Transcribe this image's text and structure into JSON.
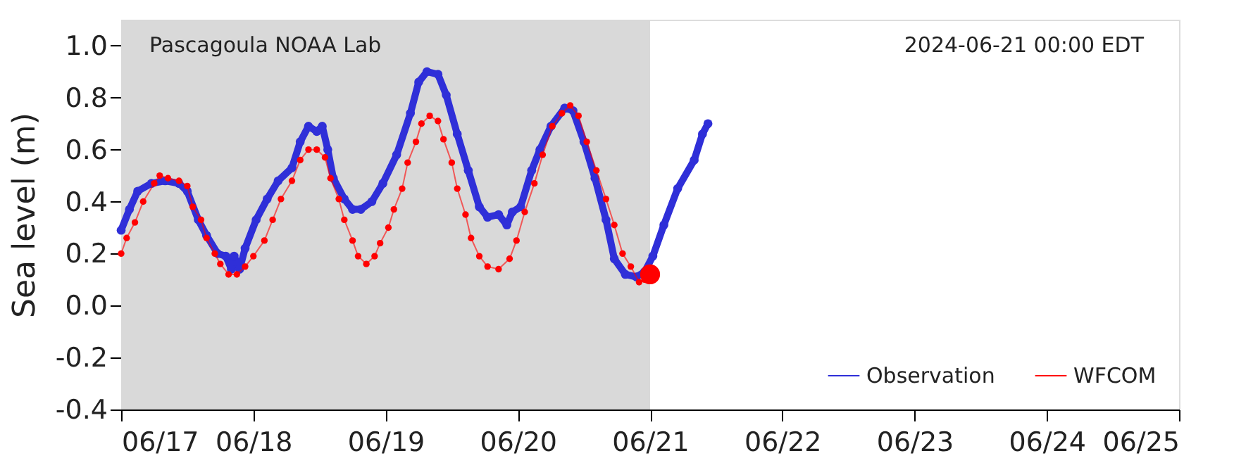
{
  "chart_data": {
    "type": "line",
    "ylabel": "Sea level (m)",
    "annotations": [
      "Pascagoula NOAA Lab",
      "2024-06-21 00:00 EDT"
    ],
    "xlim": [
      "2024-06-17T00:00",
      "2024-06-25T00:00"
    ],
    "xticks": [
      {
        "value": "2024-06-17T00:00",
        "label": "06/17"
      },
      {
        "value": "2024-06-18T00:00",
        "label": "06/18"
      },
      {
        "value": "2024-06-19T00:00",
        "label": "06/19"
      },
      {
        "value": "2024-06-20T00:00",
        "label": "06/20"
      },
      {
        "value": "2024-06-21T00:00",
        "label": "06/21"
      },
      {
        "value": "2024-06-22T00:00",
        "label": "06/22"
      },
      {
        "value": "2024-06-23T00:00",
        "label": "06/23"
      },
      {
        "value": "2024-06-24T00:00",
        "label": "06/24"
      },
      {
        "value": "2024-06-25T00:00",
        "label": "06/25"
      }
    ],
    "ylim": [
      -0.4,
      1.1
    ],
    "yticks": [
      {
        "value": -0.4,
        "label": "-0.4"
      },
      {
        "value": -0.2,
        "label": "-0.2"
      },
      {
        "value": 0,
        "label": "0.0"
      },
      {
        "value": 0.2,
        "label": "0.2"
      },
      {
        "value": 0.4,
        "label": "0.4"
      },
      {
        "value": 0.6,
        "label": "0.6"
      },
      {
        "value": 0.8,
        "label": "0.8"
      },
      {
        "value": 1.0,
        "label": "1.0"
      }
    ],
    "grid": false,
    "legend": "bottom right",
    "line_style": "solid",
    "bands": [
      {
        "axis": "x",
        "from": "2024-06-17T00:00",
        "to": "2024-06-21T00:00",
        "color": "#d9d9d9"
      }
    ],
    "series": [
      {
        "name": "Observation",
        "color": "#2f2fd8",
        "type": "line",
        "marker": "circle",
        "x": [
          "2024-06-17T00:00",
          "2024-06-17T01:30",
          "2024-06-17T03:00",
          "2024-06-17T05:30",
          "2024-06-17T08:00",
          "2024-06-17T10:30",
          "2024-06-17T12:00",
          "2024-06-17T14:00",
          "2024-06-17T15:30",
          "2024-06-17T17:30",
          "2024-06-17T19:00",
          "2024-06-17T20:00",
          "2024-06-17T20:30",
          "2024-06-17T21:30",
          "2024-06-17T22:30",
          "2024-06-18T00:30",
          "2024-06-18T02:30",
          "2024-06-18T04:30",
          "2024-06-18T07:00",
          "2024-06-18T08:30",
          "2024-06-18T10:00",
          "2024-06-18T11:30",
          "2024-06-18T12:30",
          "2024-06-18T13:30",
          "2024-06-18T14:30",
          "2024-06-18T16:30",
          "2024-06-18T18:00",
          "2024-06-18T19:30",
          "2024-06-18T21:30",
          "2024-06-18T23:30",
          "2024-06-19T02:00",
          "2024-06-19T04:30",
          "2024-06-19T06:00",
          "2024-06-19T07:30",
          "2024-06-19T09:30",
          "2024-06-19T11:00",
          "2024-06-19T13:00",
          "2024-06-19T15:00",
          "2024-06-19T17:00",
          "2024-06-19T18:30",
          "2024-06-19T20:30",
          "2024-06-19T22:00",
          "2024-06-19T23:00",
          "2024-06-20T00:30",
          "2024-06-20T02:30",
          "2024-06-20T04:00",
          "2024-06-20T06:00",
          "2024-06-20T08:30",
          "2024-06-20T10:00",
          "2024-06-20T12:00",
          "2024-06-20T14:00",
          "2024-06-20T16:00",
          "2024-06-20T17:30",
          "2024-06-20T19:30",
          "2024-06-20T21:30",
          "2024-06-20T23:00",
          "2024-06-21T00:30",
          "2024-06-21T02:30",
          "2024-06-21T05:00",
          "2024-06-21T08:00",
          "2024-06-21T09:30",
          "2024-06-21T10:30"
        ],
        "values": [
          0.29,
          0.37,
          0.44,
          0.47,
          0.48,
          0.47,
          0.44,
          0.33,
          0.27,
          0.2,
          0.19,
          0.14,
          0.19,
          0.14,
          0.22,
          0.33,
          0.41,
          0.48,
          0.53,
          0.63,
          0.69,
          0.67,
          0.69,
          0.6,
          0.49,
          0.41,
          0.37,
          0.37,
          0.4,
          0.47,
          0.58,
          0.74,
          0.86,
          0.9,
          0.89,
          0.81,
          0.66,
          0.52,
          0.38,
          0.34,
          0.35,
          0.31,
          0.36,
          0.38,
          0.52,
          0.6,
          0.69,
          0.76,
          0.75,
          0.63,
          0.49,
          0.33,
          0.18,
          0.12,
          0.11,
          0.13,
          0.19,
          0.31,
          0.45,
          0.56,
          0.66,
          0.7
        ]
      },
      {
        "name": "WFCOM",
        "color": "#ff0000",
        "type": "line",
        "marker": "circle",
        "x": [
          "2024-06-17T00:00",
          "2024-06-17T01:00",
          "2024-06-17T02:30",
          "2024-06-17T04:00",
          "2024-06-17T06:00",
          "2024-06-17T07:00",
          "2024-06-17T08:30",
          "2024-06-17T10:30",
          "2024-06-17T12:00",
          "2024-06-17T13:00",
          "2024-06-17T14:30",
          "2024-06-17T15:30",
          "2024-06-17T17:00",
          "2024-06-17T18:00",
          "2024-06-17T19:30",
          "2024-06-17T21:00",
          "2024-06-17T22:30",
          "2024-06-18T00:00",
          "2024-06-18T02:00",
          "2024-06-18T03:30",
          "2024-06-18T05:00",
          "2024-06-18T07:00",
          "2024-06-18T08:30",
          "2024-06-18T10:00",
          "2024-06-18T11:30",
          "2024-06-18T13:00",
          "2024-06-18T14:00",
          "2024-06-18T15:30",
          "2024-06-18T16:30",
          "2024-06-18T18:00",
          "2024-06-18T19:00",
          "2024-06-18T20:30",
          "2024-06-18T22:00",
          "2024-06-18T23:00",
          "2024-06-19T00:30",
          "2024-06-19T01:30",
          "2024-06-19T03:00",
          "2024-06-19T04:00",
          "2024-06-19T05:30",
          "2024-06-19T06:30",
          "2024-06-19T08:00",
          "2024-06-19T09:30",
          "2024-06-19T10:30",
          "2024-06-19T12:00",
          "2024-06-19T13:00",
          "2024-06-19T14:30",
          "2024-06-19T15:30",
          "2024-06-19T17:00",
          "2024-06-19T18:30",
          "2024-06-19T20:30",
          "2024-06-19T22:30",
          "2024-06-19T23:45",
          "2024-06-20T01:15",
          "2024-06-20T03:00",
          "2024-06-20T04:30",
          "2024-06-20T06:15",
          "2024-06-20T08:00",
          "2024-06-20T09:30",
          "2024-06-20T11:00",
          "2024-06-20T12:30",
          "2024-06-20T14:15",
          "2024-06-20T16:00",
          "2024-06-20T17:30",
          "2024-06-20T19:00",
          "2024-06-20T20:30",
          "2024-06-20T22:00",
          "2024-06-20T23:00",
          "2024-06-21T00:00"
        ],
        "values": [
          0.2,
          0.26,
          0.32,
          0.4,
          0.47,
          0.5,
          0.49,
          0.48,
          0.46,
          0.38,
          0.33,
          0.26,
          0.2,
          0.16,
          0.12,
          0.12,
          0.15,
          0.19,
          0.25,
          0.33,
          0.41,
          0.48,
          0.56,
          0.6,
          0.6,
          0.57,
          0.49,
          0.41,
          0.33,
          0.25,
          0.19,
          0.16,
          0.19,
          0.24,
          0.3,
          0.37,
          0.45,
          0.55,
          0.63,
          0.7,
          0.73,
          0.71,
          0.64,
          0.55,
          0.45,
          0.35,
          0.26,
          0.19,
          0.15,
          0.14,
          0.18,
          0.25,
          0.36,
          0.47,
          0.58,
          0.69,
          0.74,
          0.77,
          0.73,
          0.63,
          0.52,
          0.41,
          0.31,
          0.2,
          0.15,
          0.09,
          0.1,
          0.12
        ]
      },
      {
        "color": "#ff0000",
        "type": "scatter",
        "marker": "circle",
        "x": [
          "2024-06-21T00:00"
        ],
        "values": [
          0.12
        ]
      }
    ]
  }
}
